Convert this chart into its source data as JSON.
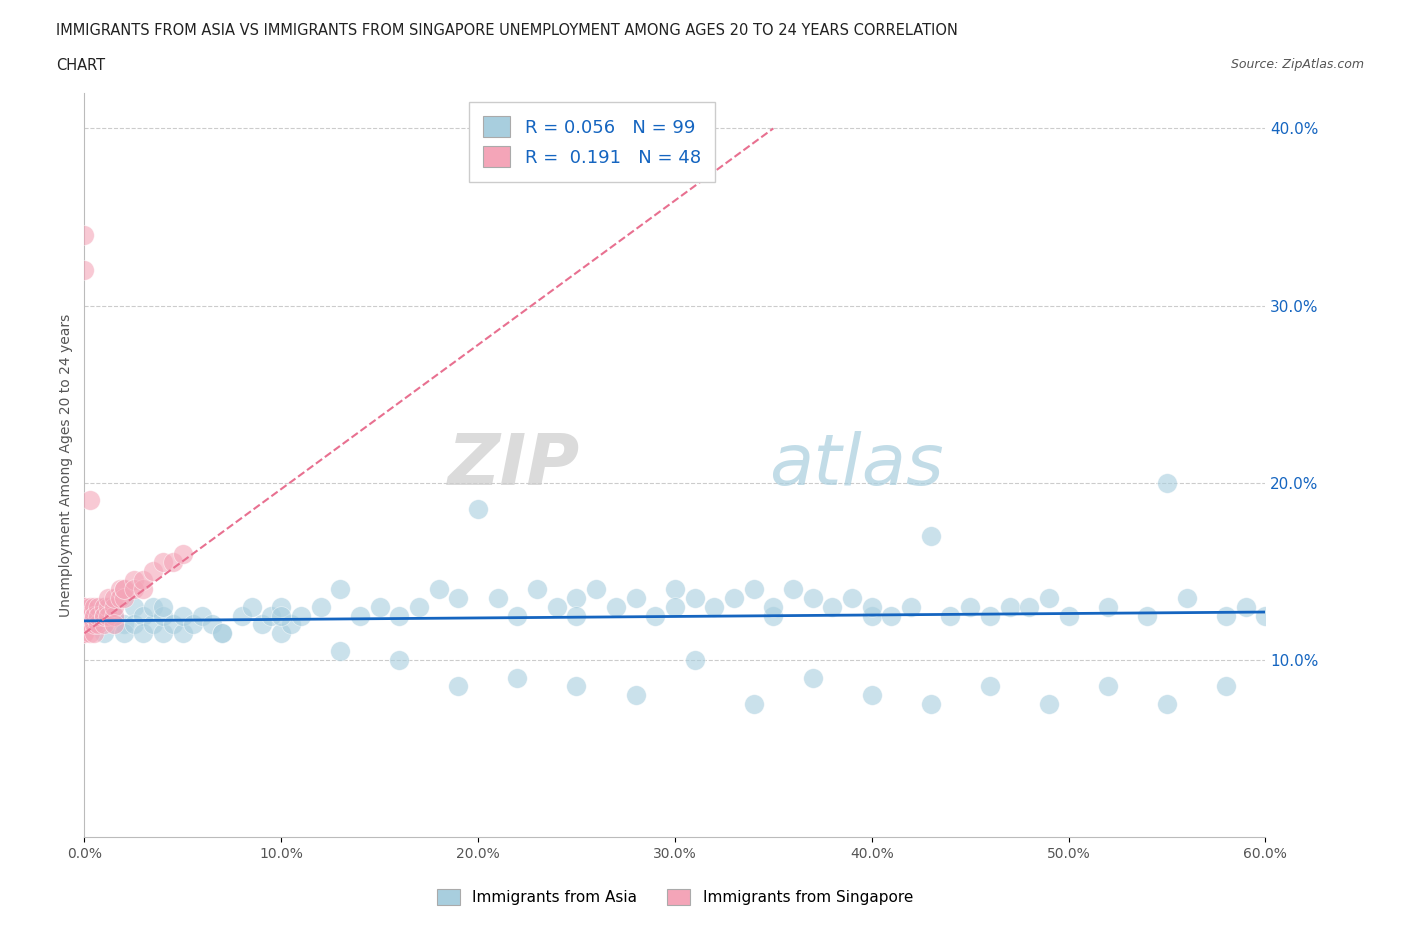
{
  "title_line1": "IMMIGRANTS FROM ASIA VS IMMIGRANTS FROM SINGAPORE UNEMPLOYMENT AMONG AGES 20 TO 24 YEARS CORRELATION",
  "title_line2": "CHART",
  "source": "Source: ZipAtlas.com",
  "ylabel": "Unemployment Among Ages 20 to 24 years",
  "xlim": [
    0.0,
    0.6
  ],
  "ylim": [
    0.0,
    0.42
  ],
  "xticks": [
    0.0,
    0.1,
    0.2,
    0.3,
    0.4,
    0.5,
    0.6
  ],
  "xticklabels": [
    "0.0%",
    "10.0%",
    "20.0%",
    "30.0%",
    "40.0%",
    "50.0%",
    "60.0%"
  ],
  "yticks": [
    0.1,
    0.2,
    0.3,
    0.4
  ],
  "yticklabels": [
    "10.0%",
    "20.0%",
    "30.0%",
    "40.0%"
  ],
  "watermark_zip": "ZIP",
  "watermark_atlas": "atlas",
  "legend_asia_label": "Immigrants from Asia",
  "legend_singapore_label": "Immigrants from Singapore",
  "asia_color": "#A8CEDE",
  "singapore_color": "#F4A5B8",
  "asia_trend_color": "#1565C0",
  "singapore_trend_color": "#E87090",
  "asia_scatter_x": [
    0.01,
    0.01,
    0.01,
    0.015,
    0.015,
    0.02,
    0.02,
    0.025,
    0.025,
    0.03,
    0.03,
    0.035,
    0.035,
    0.04,
    0.04,
    0.04,
    0.045,
    0.05,
    0.05,
    0.055,
    0.06,
    0.065,
    0.07,
    0.08,
    0.085,
    0.09,
    0.095,
    0.1,
    0.1,
    0.105,
    0.11,
    0.12,
    0.13,
    0.14,
    0.15,
    0.16,
    0.17,
    0.18,
    0.19,
    0.2,
    0.21,
    0.22,
    0.23,
    0.24,
    0.25,
    0.25,
    0.26,
    0.27,
    0.28,
    0.29,
    0.3,
    0.3,
    0.31,
    0.32,
    0.33,
    0.34,
    0.35,
    0.35,
    0.36,
    0.37,
    0.38,
    0.39,
    0.4,
    0.4,
    0.41,
    0.42,
    0.43,
    0.44,
    0.45,
    0.46,
    0.47,
    0.48,
    0.49,
    0.5,
    0.52,
    0.54,
    0.55,
    0.56,
    0.58,
    0.59,
    0.07,
    0.1,
    0.13,
    0.16,
    0.19,
    0.22,
    0.25,
    0.28,
    0.31,
    0.34,
    0.37,
    0.4,
    0.43,
    0.46,
    0.49,
    0.52,
    0.55,
    0.58,
    0.6
  ],
  "asia_scatter_y": [
    0.125,
    0.115,
    0.13,
    0.12,
    0.125,
    0.12,
    0.115,
    0.13,
    0.12,
    0.125,
    0.115,
    0.12,
    0.13,
    0.115,
    0.125,
    0.13,
    0.12,
    0.115,
    0.125,
    0.12,
    0.125,
    0.12,
    0.115,
    0.125,
    0.13,
    0.12,
    0.125,
    0.115,
    0.13,
    0.12,
    0.125,
    0.13,
    0.14,
    0.125,
    0.13,
    0.125,
    0.13,
    0.14,
    0.135,
    0.185,
    0.135,
    0.125,
    0.14,
    0.13,
    0.135,
    0.125,
    0.14,
    0.13,
    0.135,
    0.125,
    0.14,
    0.13,
    0.135,
    0.13,
    0.135,
    0.14,
    0.125,
    0.13,
    0.14,
    0.135,
    0.13,
    0.135,
    0.125,
    0.13,
    0.125,
    0.13,
    0.17,
    0.125,
    0.13,
    0.125,
    0.13,
    0.13,
    0.135,
    0.125,
    0.13,
    0.125,
    0.2,
    0.135,
    0.125,
    0.13,
    0.115,
    0.125,
    0.105,
    0.1,
    0.085,
    0.09,
    0.085,
    0.08,
    0.1,
    0.075,
    0.09,
    0.08,
    0.075,
    0.085,
    0.075,
    0.085,
    0.075,
    0.085,
    0.125
  ],
  "singapore_scatter_x": [
    0.0,
    0.0,
    0.0,
    0.0,
    0.0,
    0.0,
    0.0,
    0.0,
    0.0,
    0.003,
    0.003,
    0.003,
    0.003,
    0.005,
    0.005,
    0.005,
    0.005,
    0.005,
    0.007,
    0.007,
    0.007,
    0.01,
    0.01,
    0.01,
    0.01,
    0.012,
    0.012,
    0.012,
    0.015,
    0.015,
    0.015,
    0.015,
    0.018,
    0.018,
    0.02,
    0.02,
    0.02,
    0.025,
    0.025,
    0.03,
    0.03,
    0.035,
    0.04,
    0.045,
    0.05,
    0.0,
    0.0,
    0.003
  ],
  "singapore_scatter_y": [
    0.125,
    0.13,
    0.12,
    0.115,
    0.125,
    0.13,
    0.115,
    0.125,
    0.12,
    0.125,
    0.12,
    0.13,
    0.115,
    0.125,
    0.13,
    0.115,
    0.12,
    0.125,
    0.13,
    0.12,
    0.125,
    0.125,
    0.13,
    0.12,
    0.125,
    0.13,
    0.125,
    0.135,
    0.125,
    0.13,
    0.135,
    0.12,
    0.14,
    0.135,
    0.14,
    0.135,
    0.14,
    0.145,
    0.14,
    0.14,
    0.145,
    0.15,
    0.155,
    0.155,
    0.16,
    0.34,
    0.32,
    0.19
  ],
  "asia_trend_start_x": 0.0,
  "asia_trend_end_x": 0.6,
  "asia_trend_start_y": 0.122,
  "asia_trend_end_y": 0.127,
  "sg_trend_start_x": 0.0,
  "sg_trend_end_x": 0.35,
  "sg_trend_start_y": 0.115,
  "sg_trend_end_y": 0.4
}
